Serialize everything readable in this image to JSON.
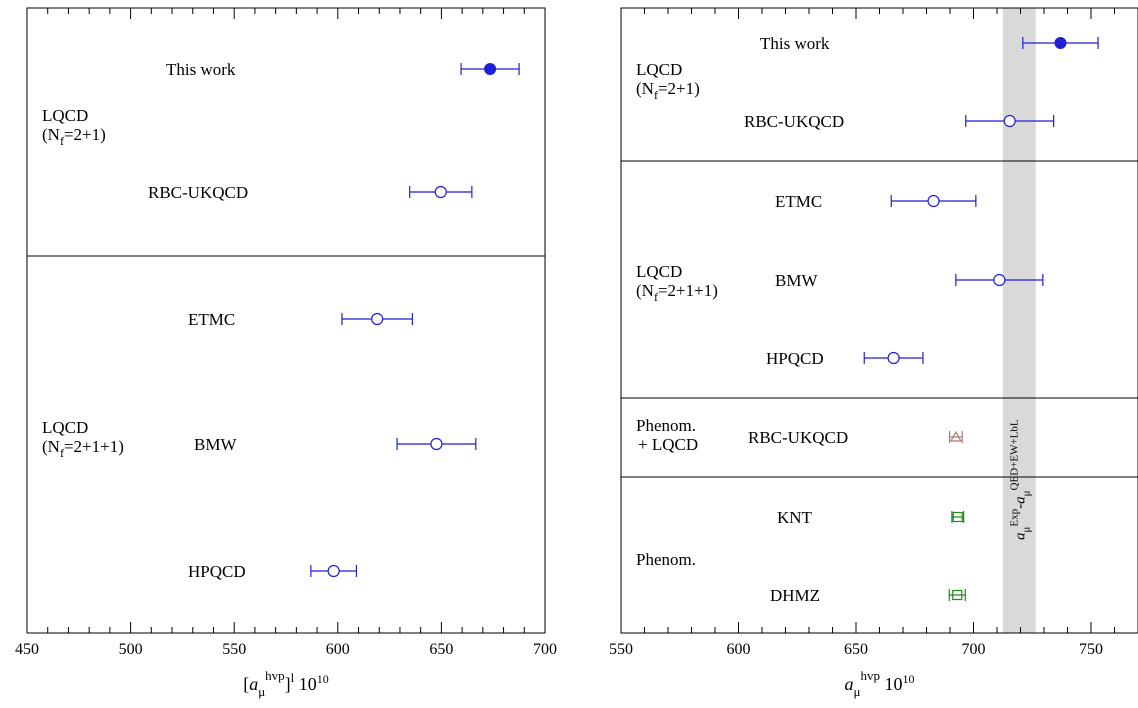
{
  "colors": {
    "lattice": "#1f1fd6",
    "phenom": "#1a8a1a",
    "mixed": "#b07a70",
    "band": "#d9d9d9"
  },
  "chart_data": [
    {
      "type": "scatter",
      "xlabel": "[a_μ^hvp]^l 10^10",
      "xlim": [
        450,
        700
      ],
      "xticks": [
        450,
        500,
        550,
        600,
        650,
        700
      ],
      "groups": [
        {
          "label_lines": [
            "LQCD",
            "(N_f=2+1)"
          ],
          "rows": 2
        },
        {
          "label_lines": [
            "LQCD",
            "(N_f=2+1+1)"
          ],
          "rows": 3
        }
      ],
      "points": [
        {
          "name": "This work",
          "value": 673.5,
          "err": 14.0,
          "marker": "filled-circle"
        },
        {
          "name": "RBC-UKQCD",
          "value": 649.7,
          "err": 15.0,
          "marker": "open-circle"
        },
        {
          "name": "ETMC",
          "value": 619.0,
          "err": 17.0,
          "marker": "open-circle"
        },
        {
          "name": "BMW",
          "value": 647.6,
          "err": 19.0,
          "marker": "open-circle"
        },
        {
          "name": "HPQCD",
          "value": 598.0,
          "err": 11.0,
          "marker": "open-circle"
        }
      ]
    },
    {
      "type": "scatter",
      "xlabel": "a_μ^hvp 10^10",
      "xlim": [
        550,
        770
      ],
      "xticks": [
        550,
        600,
        650,
        700,
        750
      ],
      "band": {
        "label": "a_μ^Exp - a_μ^QED+EW+LbL",
        "range": [
          712.5,
          726.5
        ]
      },
      "groups": [
        {
          "label_lines": [
            "LQCD",
            "(N_f=2+1)"
          ],
          "rows": 2
        },
        {
          "label_lines": [
            "LQCD",
            "(N_f=2+1+1)"
          ],
          "rows": 3
        },
        {
          "label_lines": [
            "Phenom.",
            "+ LQCD"
          ],
          "rows": 1
        },
        {
          "label_lines": [
            "Phenom."
          ],
          "rows": 2
        }
      ],
      "points": [
        {
          "name": "This work",
          "value": 737.0,
          "err": 16.0,
          "marker": "filled-circle"
        },
        {
          "name": "RBC-UKQCD",
          "value": 715.4,
          "err": 18.7,
          "marker": "open-circle"
        },
        {
          "name": "ETMC",
          "value": 683.0,
          "err": 18.0,
          "marker": "open-circle"
        },
        {
          "name": "BMW",
          "value": 711.0,
          "err": 18.5,
          "marker": "open-circle"
        },
        {
          "name": "HPQCD",
          "value": 666.0,
          "err": 12.5,
          "marker": "open-circle"
        },
        {
          "name": "RBC-UKQCD",
          "value": 692.5,
          "err": 2.7,
          "marker": "open-triangle"
        },
        {
          "name": "KNT",
          "value": 693.3,
          "err": 2.5,
          "marker": "open-square"
        },
        {
          "name": "DHMZ",
          "value": 693.1,
          "err": 3.4,
          "marker": "open-square"
        }
      ]
    }
  ]
}
